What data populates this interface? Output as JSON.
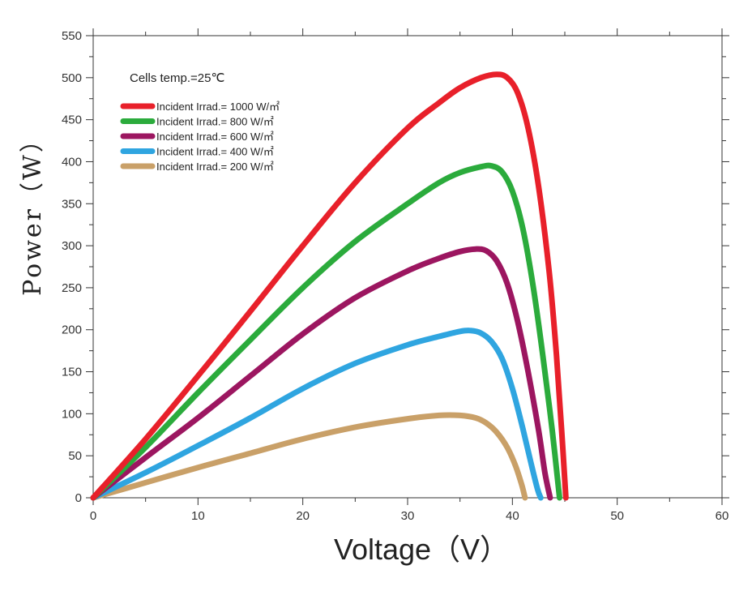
{
  "chart_data": {
    "type": "line",
    "title": "",
    "xlabel": "Voltage（V）",
    "ylabel": "Power（W）",
    "annotation": "Cells temp.=25℃",
    "xlim": [
      0,
      60
    ],
    "ylim": [
      0,
      550
    ],
    "x_ticks": [
      0,
      10,
      20,
      30,
      40,
      50,
      60
    ],
    "y_ticks": [
      0,
      50,
      100,
      150,
      200,
      250,
      300,
      350,
      400,
      450,
      500,
      550
    ],
    "grid": false,
    "legend_position": "top-left",
    "series": [
      {
        "name": "Incident Irrad.= 1000 W/㎡",
        "color": "#e8202a",
        "points": [
          [
            0,
            0
          ],
          [
            5,
            70
          ],
          [
            10,
            145
          ],
          [
            15,
            222
          ],
          [
            20,
            300
          ],
          [
            25,
            375
          ],
          [
            30,
            440
          ],
          [
            33,
            470
          ],
          [
            35,
            488
          ],
          [
            37,
            500
          ],
          [
            38.5,
            504
          ],
          [
            39.5,
            500
          ],
          [
            40.5,
            482
          ],
          [
            41.5,
            440
          ],
          [
            42.5,
            370
          ],
          [
            43.5,
            270
          ],
          [
            44.2,
            170
          ],
          [
            44.7,
            80
          ],
          [
            45.1,
            0
          ]
        ]
      },
      {
        "name": "Incident Irrad.= 800 W/㎡",
        "color": "#2bab3c",
        "points": [
          [
            0,
            0
          ],
          [
            5,
            60
          ],
          [
            10,
            125
          ],
          [
            15,
            188
          ],
          [
            20,
            250
          ],
          [
            25,
            305
          ],
          [
            30,
            350
          ],
          [
            33,
            375
          ],
          [
            35,
            387
          ],
          [
            37,
            394
          ],
          [
            38,
            395
          ],
          [
            39,
            388
          ],
          [
            40,
            365
          ],
          [
            41,
            320
          ],
          [
            42,
            250
          ],
          [
            43,
            160
          ],
          [
            43.8,
            80
          ],
          [
            44.5,
            0
          ]
        ]
      },
      {
        "name": "Incident Irrad.= 600 W/㎡",
        "color": "#9c1660",
        "points": [
          [
            0,
            0
          ],
          [
            5,
            48
          ],
          [
            10,
            95
          ],
          [
            15,
            145
          ],
          [
            20,
            195
          ],
          [
            25,
            238
          ],
          [
            30,
            270
          ],
          [
            33,
            285
          ],
          [
            35,
            293
          ],
          [
            36.5,
            296
          ],
          [
            37.5,
            294
          ],
          [
            38.5,
            282
          ],
          [
            39.5,
            255
          ],
          [
            40.5,
            210
          ],
          [
            41.5,
            150
          ],
          [
            42.5,
            80
          ],
          [
            43.1,
            30
          ],
          [
            43.6,
            0
          ]
        ]
      },
      {
        "name": "Incident Irrad.= 400 W/㎡",
        "color": "#2fa5e0",
        "points": [
          [
            0,
            0
          ],
          [
            5,
            30
          ],
          [
            10,
            62
          ],
          [
            15,
            95
          ],
          [
            20,
            130
          ],
          [
            25,
            160
          ],
          [
            30,
            182
          ],
          [
            33,
            192
          ],
          [
            35,
            198
          ],
          [
            36,
            199
          ],
          [
            37,
            196
          ],
          [
            38,
            186
          ],
          [
            39,
            166
          ],
          [
            40,
            130
          ],
          [
            41,
            82
          ],
          [
            41.8,
            40
          ],
          [
            42.4,
            10
          ],
          [
            42.7,
            0
          ]
        ]
      },
      {
        "name": "Incident Irrad.= 200 W/㎡",
        "color": "#c9a068",
        "points": [
          [
            0,
            0
          ],
          [
            5,
            18
          ],
          [
            10,
            36
          ],
          [
            15,
            53
          ],
          [
            20,
            70
          ],
          [
            25,
            84
          ],
          [
            30,
            94
          ],
          [
            33,
            98
          ],
          [
            35,
            98
          ],
          [
            36.5,
            95
          ],
          [
            37.5,
            89
          ],
          [
            38.5,
            78
          ],
          [
            39.5,
            60
          ],
          [
            40.3,
            38
          ],
          [
            40.9,
            15
          ],
          [
            41.2,
            0
          ]
        ]
      }
    ]
  }
}
